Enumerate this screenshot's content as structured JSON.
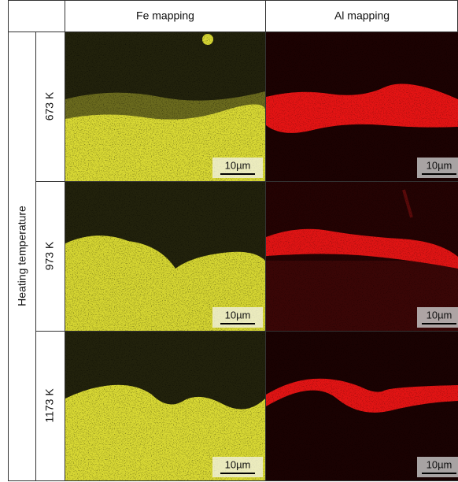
{
  "header": {
    "columns": [
      "Fe mapping",
      "Al mapping"
    ]
  },
  "row_group_label": "Heating temperature",
  "rows": [
    {
      "label": "673 K"
    },
    {
      "label": "973 K"
    },
    {
      "label": "1173 K"
    }
  ],
  "scale_bar": "10µm"
}
